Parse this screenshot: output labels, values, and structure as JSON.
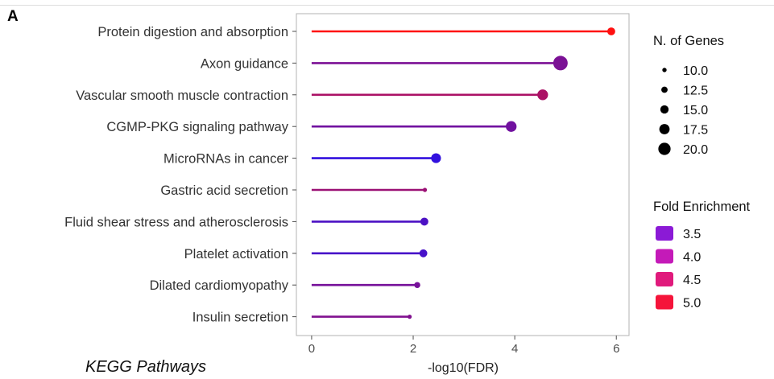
{
  "panel_letter": "A",
  "caption": "KEGG Pathways",
  "chart_data": {
    "type": "lollipop",
    "categories": [
      "Protein digestion and absorption",
      "Axon guidance",
      "Vascular smooth muscle contraction",
      "CGMP-PKG signaling pathway",
      "MicroRNAs in cancer",
      "Gastric acid secretion",
      "Fluid shear stress and atherosclerosis",
      "Platelet activation",
      "Dilated cardiomyopathy",
      "Insulin secretion"
    ],
    "values": [
      5.9,
      4.9,
      4.55,
      3.93,
      2.45,
      2.23,
      2.22,
      2.2,
      2.08,
      1.93
    ],
    "n_genes": [
      13,
      20,
      16,
      16,
      15,
      9,
      13,
      13,
      11,
      9
    ],
    "fold_enrichment": [
      5.1,
      3.85,
      4.3,
      3.75,
      3.15,
      4.15,
      3.4,
      3.35,
      3.8,
      3.9
    ],
    "xlabel": "-log10(FDR)",
    "xlim": [
      -0.3,
      6.25
    ],
    "xticks": [
      0,
      2,
      4,
      6
    ],
    "legend_size": {
      "title": "N. of Genes",
      "items": [
        "10.0",
        "12.5",
        "15.0",
        "17.5",
        "20.0"
      ],
      "values": [
        10,
        12.5,
        15,
        17.5,
        20
      ]
    },
    "legend_color": {
      "title": "Fold Enrichment",
      "items": [
        "3.5",
        "4.0",
        "4.5",
        "5.0"
      ],
      "values": [
        3.5,
        4.0,
        4.5,
        5.0
      ],
      "colors": [
        "#8b1ad6",
        "#c41ab8",
        "#e01a7c",
        "#f5143a"
      ]
    },
    "color_scale": {
      "low": 3.0,
      "high": 5.1,
      "low_color": "#2211ee",
      "high_color": "#ff1111"
    }
  }
}
